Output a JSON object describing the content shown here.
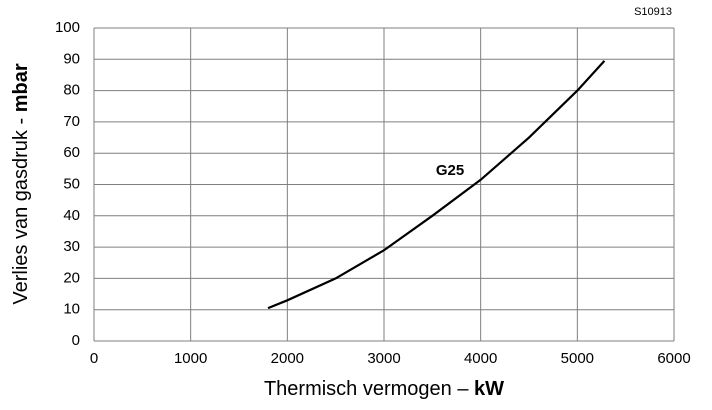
{
  "chart_data": {
    "type": "line",
    "code": "S10913",
    "xlabel": {
      "text": "Thermisch vermogen – ",
      "unit": "kW"
    },
    "ylabel": {
      "text": "Verlies van gasdruk - ",
      "unit": "mbar"
    },
    "annotation": "G25",
    "x": [
      1800,
      2000,
      2500,
      3000,
      3500,
      4000,
      4500,
      5000,
      5280
    ],
    "values": [
      10.5,
      13,
      20,
      29,
      40,
      51.5,
      65,
      80,
      89.5
    ],
    "color": "#000000",
    "xlim": [
      0,
      6000
    ],
    "xticks": [
      0,
      1000,
      2000,
      3000,
      4000,
      5000,
      6000
    ],
    "ylim": [
      0,
      100
    ],
    "yticks": [
      0,
      10,
      20,
      30,
      40,
      50,
      60,
      70,
      80,
      90,
      100
    ],
    "grid": true
  }
}
